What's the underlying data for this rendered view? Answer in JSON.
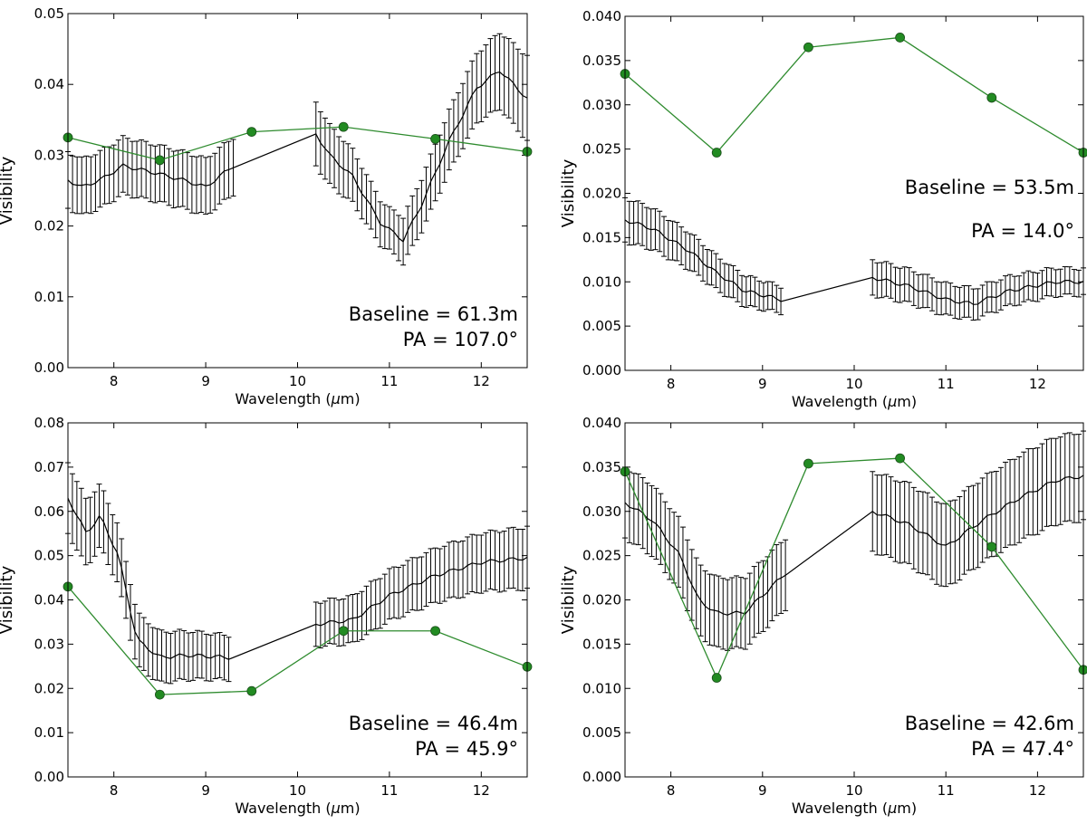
{
  "colors": {
    "model": "#2e8b2e",
    "model_marker": "#228b22",
    "data": "#000000"
  },
  "chart_data": [
    {
      "type": "line",
      "xlabel": "Wavelength ($\\mu$m)",
      "ylabel": "Visibility",
      "xlim": [
        7.5,
        12.5
      ],
      "ylim": [
        0,
        0.05
      ],
      "xticks": [
        "8",
        "9",
        "10",
        "11",
        "12"
      ],
      "yticks": [
        "0.00",
        "0.01",
        "0.02",
        "0.03",
        "0.04",
        "0.05"
      ],
      "annotation_baseline": "Baseline = 61.3m",
      "annotation_pa": "PA = 107.0°",
      "series": [
        {
          "name": "model",
          "x": [
            7.5,
            8.5,
            9.5,
            10.5,
            11.5,
            12.5
          ],
          "y": [
            0.0325,
            0.0293,
            0.0333,
            0.034,
            0.0323,
            0.0305
          ]
        },
        {
          "name": "observed",
          "knots": [
            [
              7.5,
              0.0265
            ],
            [
              7.65,
              0.0255
            ],
            [
              7.85,
              0.0265
            ],
            [
              8.1,
              0.0285
            ],
            [
              8.45,
              0.0275
            ],
            [
              8.75,
              0.0265
            ],
            [
              9.0,
              0.0255
            ],
            [
              9.3,
              0.0285
            ],
            [
              10.2,
              0.033
            ],
            [
              10.35,
              0.03
            ],
            [
              10.6,
              0.027
            ],
            [
              10.9,
              0.0205
            ],
            [
              11.15,
              0.018
            ],
            [
              11.35,
              0.023
            ],
            [
              11.65,
              0.032
            ],
            [
              11.95,
              0.0395
            ],
            [
              12.2,
              0.042
            ],
            [
              12.5,
              0.038
            ]
          ],
          "err_knots": [
            [
              7.5,
              0.004
            ],
            [
              9.3,
              0.004
            ],
            [
              10.2,
              0.0045
            ],
            [
              11.0,
              0.003
            ],
            [
              11.5,
              0.004
            ],
            [
              12.5,
              0.006
            ]
          ]
        }
      ]
    },
    {
      "type": "line",
      "xlabel": "Wavelength ($\\mu$m)",
      "ylabel": "Visibility",
      "xlim": [
        7.5,
        12.5
      ],
      "ylim": [
        0,
        0.04
      ],
      "xticks": [
        "8",
        "9",
        "10",
        "11",
        "12"
      ],
      "yticks": [
        "0.000",
        "0.005",
        "0.010",
        "0.015",
        "0.020",
        "0.025",
        "0.030",
        "0.035",
        "0.040"
      ],
      "annotation_baseline": "Baseline = 53.5m",
      "annotation_pa": "PA = 14.0°",
      "series": [
        {
          "name": "model",
          "x": [
            7.5,
            8.5,
            9.5,
            10.5,
            11.5,
            12.5
          ],
          "y": [
            0.0335,
            0.0246,
            0.0365,
            0.0376,
            0.0308,
            0.0246
          ]
        },
        {
          "name": "observed",
          "knots": [
            [
              7.5,
              0.017
            ],
            [
              7.8,
              0.016
            ],
            [
              8.2,
              0.0135
            ],
            [
              8.5,
              0.011
            ],
            [
              8.8,
              0.009
            ],
            [
              9.2,
              0.008
            ],
            [
              10.2,
              0.0105
            ],
            [
              10.6,
              0.0095
            ],
            [
              11.0,
              0.008
            ],
            [
              11.3,
              0.0075
            ],
            [
              11.7,
              0.009
            ],
            [
              12.2,
              0.01
            ],
            [
              12.5,
              0.01
            ]
          ],
          "err_knots": [
            [
              7.5,
              0.0025
            ],
            [
              9.2,
              0.0015
            ],
            [
              10.2,
              0.002
            ],
            [
              12.5,
              0.0015
            ]
          ]
        }
      ]
    },
    {
      "type": "line",
      "xlabel": "Wavelength ($\\mu$m)",
      "ylabel": "Visibility",
      "xlim": [
        7.5,
        12.5
      ],
      "ylim": [
        0,
        0.08
      ],
      "xticks": [
        "8",
        "9",
        "10",
        "11",
        "12"
      ],
      "yticks": [
        "0.00",
        "0.01",
        "0.02",
        "0.03",
        "0.04",
        "0.05",
        "0.06",
        "0.07",
        "0.08"
      ],
      "annotation_baseline": "Baseline = 46.4m",
      "annotation_pa": "PA = 45.9°",
      "series": [
        {
          "name": "model",
          "x": [
            7.5,
            8.5,
            9.5,
            10.5,
            11.5,
            12.5
          ],
          "y": [
            0.043,
            0.0186,
            0.0194,
            0.033,
            0.033,
            0.0249
          ]
        },
        {
          "name": "observed",
          "knots": [
            [
              7.5,
              0.063
            ],
            [
              7.7,
              0.055
            ],
            [
              7.85,
              0.059
            ],
            [
              8.05,
              0.05
            ],
            [
              8.25,
              0.031
            ],
            [
              8.5,
              0.027
            ],
            [
              8.8,
              0.0275
            ],
            [
              9.25,
              0.027
            ],
            [
              10.2,
              0.0345
            ],
            [
              10.6,
              0.0355
            ],
            [
              11.0,
              0.041
            ],
            [
              11.5,
              0.0455
            ],
            [
              12.0,
              0.0485
            ],
            [
              12.5,
              0.0495
            ]
          ],
          "err_knots": [
            [
              7.5,
              0.008
            ],
            [
              8.3,
              0.006
            ],
            [
              9.25,
              0.005
            ],
            [
              10.2,
              0.005
            ],
            [
              12.5,
              0.007
            ]
          ]
        }
      ]
    },
    {
      "type": "line",
      "xlabel": "Wavelength ($\\mu$m)",
      "ylabel": "Visibility",
      "xlim": [
        7.5,
        12.5
      ],
      "ylim": [
        0,
        0.04
      ],
      "xticks": [
        "8",
        "9",
        "10",
        "11",
        "12"
      ],
      "yticks": [
        "0.000",
        "0.005",
        "0.010",
        "0.015",
        "0.020",
        "0.025",
        "0.030",
        "0.035",
        "0.040"
      ],
      "annotation_baseline": "Baseline = 42.6m",
      "annotation_pa": "PA = 47.4°",
      "series": [
        {
          "name": "model",
          "x": [
            7.5,
            8.5,
            9.5,
            10.5,
            11.5,
            12.5
          ],
          "y": [
            0.0345,
            0.0112,
            0.0354,
            0.036,
            0.026,
            0.0121
          ]
        },
        {
          "name": "observed",
          "knots": [
            [
              7.5,
              0.031
            ],
            [
              7.8,
              0.029
            ],
            [
              8.1,
              0.025
            ],
            [
              8.3,
              0.02
            ],
            [
              8.5,
              0.0185
            ],
            [
              8.8,
              0.0185
            ],
            [
              9.0,
              0.0205
            ],
            [
              9.25,
              0.023
            ],
            [
              10.2,
              0.03
            ],
            [
              10.6,
              0.0285
            ],
            [
              11.0,
              0.026
            ],
            [
              11.4,
              0.029
            ],
            [
              11.8,
              0.0315
            ],
            [
              12.2,
              0.0335
            ],
            [
              12.5,
              0.034
            ]
          ],
          "err_knots": [
            [
              7.5,
              0.004
            ],
            [
              9.25,
              0.004
            ],
            [
              10.2,
              0.0045
            ],
            [
              12.5,
              0.005
            ]
          ]
        }
      ]
    }
  ]
}
